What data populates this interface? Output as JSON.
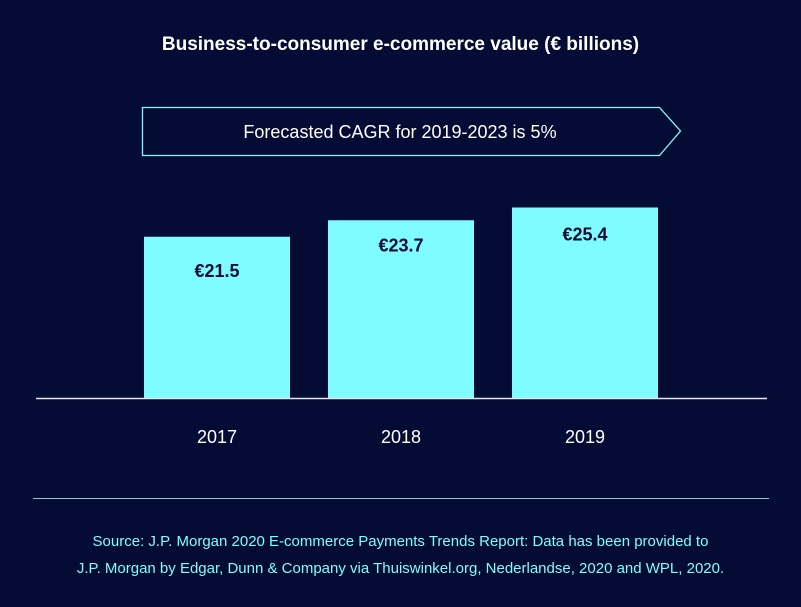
{
  "chart_data": {
    "type": "bar",
    "title": "Business-to-consumer e-commerce value (€ billions)",
    "categories": [
      "2017",
      "2018",
      "2019"
    ],
    "values": [
      21.5,
      23.7,
      25.4
    ],
    "data_labels": [
      "€21.5",
      "€23.7",
      "€25.4"
    ],
    "annotation": "Forecasted CAGR for 2019-2023 is 5%",
    "xlabel": "",
    "ylabel": "",
    "ylim": [
      0,
      27
    ],
    "grid": false,
    "colors": {
      "background": "#040b35",
      "bar": "#7ffcff",
      "label": "#040b35",
      "accent": "#7ffcff"
    }
  },
  "source": {
    "line1": "Source: J.P. Morgan 2020 E-commerce Payments Trends Report: Data has been provided to",
    "line2": "J.P. Morgan by Edgar, Dunn & Company via Thuiswinkel.org, Nederlandse, 2020 and WPL, 2020."
  }
}
